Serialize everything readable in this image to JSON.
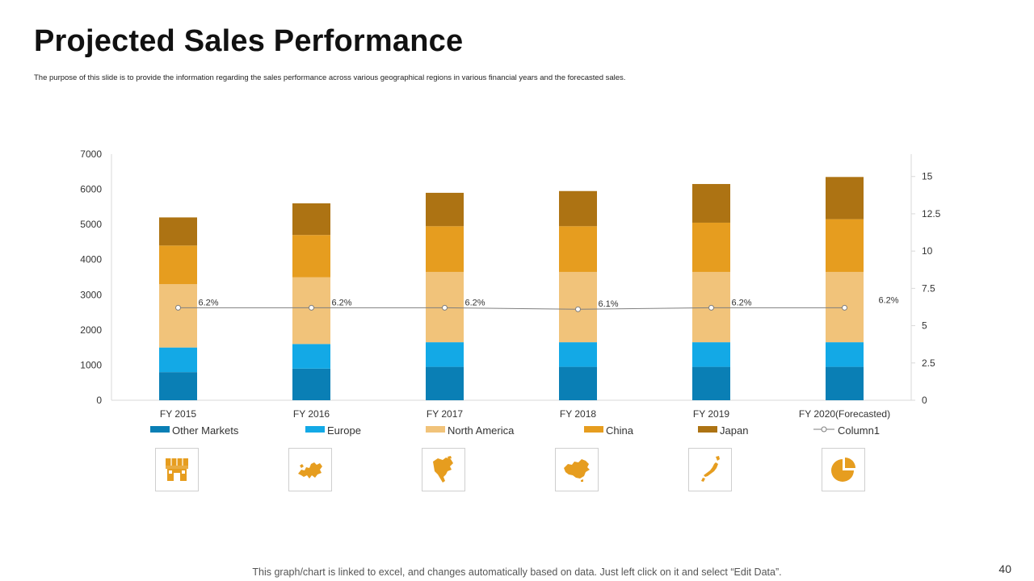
{
  "slide": {
    "title": "Projected Sales Performance",
    "subtitle": "The purpose of this slide is to provide the information regarding the sales performance across various geographical regions in various financial years and the forecasted sales.",
    "footer": "This graph/chart is linked to excel, and changes automatically based on data. Just left click on it and select “Edit Data”.",
    "page_number": "40"
  },
  "chart_data": {
    "type": "bar",
    "stacked": true,
    "categories": [
      "FY 2015",
      "FY 2016",
      "FY 2017",
      "FY 2018",
      "FY 2019",
      "FY 2020(Forecasted)"
    ],
    "series": [
      {
        "name": "Other Markets",
        "color": "#0a7fb5",
        "values": [
          800,
          900,
          950,
          950,
          950,
          950
        ]
      },
      {
        "name": "Europe",
        "color": "#13a9e6",
        "values": [
          700,
          700,
          700,
          700,
          700,
          700
        ]
      },
      {
        "name": "North America",
        "color": "#f1c37a",
        "values": [
          1800,
          1900,
          2000,
          2000,
          2000,
          2000
        ]
      },
      {
        "name": "China",
        "color": "#e69d1f",
        "values": [
          1100,
          1200,
          1300,
          1300,
          1400,
          1500
        ]
      },
      {
        "name": "Japan",
        "color": "#ad7313",
        "values": [
          800,
          900,
          950,
          1000,
          1100,
          1200
        ]
      }
    ],
    "line_series": {
      "name": "Column1",
      "color": "#7f7f7f",
      "axis": "secondary",
      "values": [
        6.2,
        6.2,
        6.2,
        6.1,
        6.2,
        6.2
      ],
      "labels": [
        "6.2%",
        "6.2%",
        "6.2%",
        "6.1%",
        "6.2%",
        "6.2%"
      ]
    },
    "y_axis": {
      "min": 0,
      "max": 7000,
      "ticks": [
        0,
        1000,
        2000,
        3000,
        4000,
        5000,
        6000,
        7000
      ],
      "tick_labels": [
        "0",
        "1000",
        "2000",
        "3000",
        "4000",
        "5000",
        "6000",
        "7000"
      ]
    },
    "y2_axis": {
      "min": 0,
      "max": 16.5,
      "ticks": [
        0,
        2.5,
        5,
        7.5,
        10,
        12.5,
        15
      ],
      "tick_labels": [
        "0",
        "2.5",
        "5",
        "7.5",
        "10",
        "12.5",
        "15"
      ]
    },
    "legend_position": "bottom",
    "gridlines": false
  },
  "icons": [
    {
      "name": "store-icon"
    },
    {
      "name": "europe-map-icon"
    },
    {
      "name": "north-america-map-icon"
    },
    {
      "name": "china-map-icon"
    },
    {
      "name": "japan-map-icon"
    },
    {
      "name": "pie-chart-icon"
    }
  ],
  "colors": {
    "accent": "#e69d1f",
    "icon": "#e69d1f"
  }
}
